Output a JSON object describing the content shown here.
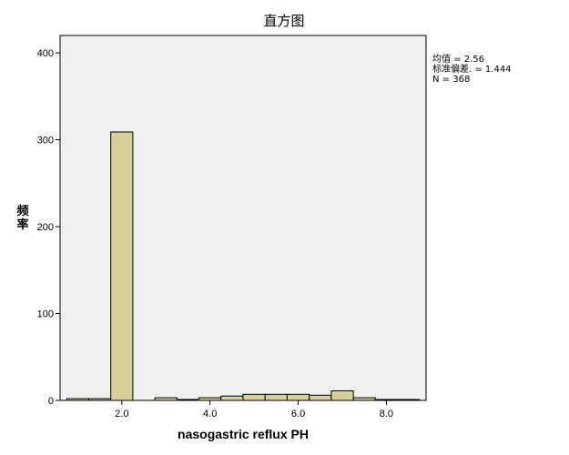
{
  "chart_data": {
    "type": "bar",
    "title": "直方图",
    "xlabel": "nasogastric reflux PH",
    "ylabel": "频率",
    "xlim": [
      0.6,
      8.9
    ],
    "ylim": [
      0,
      420
    ],
    "xticks": [
      2.0,
      4.0,
      6.0,
      8.0
    ],
    "xtick_labels": [
      "2.0",
      "4.0",
      "6.0",
      "8.0"
    ],
    "yticks": [
      0,
      100,
      200,
      300,
      400
    ],
    "ytick_labels": [
      "0",
      "100",
      "200",
      "300",
      "400"
    ],
    "bin_width": 0.5,
    "bins": [
      {
        "start": 0.75,
        "count": 2
      },
      {
        "start": 1.25,
        "count": 2
      },
      {
        "start": 1.75,
        "count": 309
      },
      {
        "start": 2.25,
        "count": 0
      },
      {
        "start": 2.75,
        "count": 3
      },
      {
        "start": 3.25,
        "count": 1
      },
      {
        "start": 3.75,
        "count": 3
      },
      {
        "start": 4.25,
        "count": 5
      },
      {
        "start": 4.75,
        "count": 7
      },
      {
        "start": 5.25,
        "count": 7
      },
      {
        "start": 5.75,
        "count": 7
      },
      {
        "start": 6.25,
        "count": 6
      },
      {
        "start": 6.75,
        "count": 11
      },
      {
        "start": 7.25,
        "count": 3
      },
      {
        "start": 7.75,
        "count": 1
      },
      {
        "start": 8.25,
        "count": 1
      }
    ],
    "grid": false,
    "bar_color": "#d6d19a",
    "plot_background": "#f0f0f0",
    "stats": {
      "mean_label": "均值 = 2.56",
      "sd_label": "标准偏差. = 1.444",
      "n_label": "N = 368"
    }
  }
}
